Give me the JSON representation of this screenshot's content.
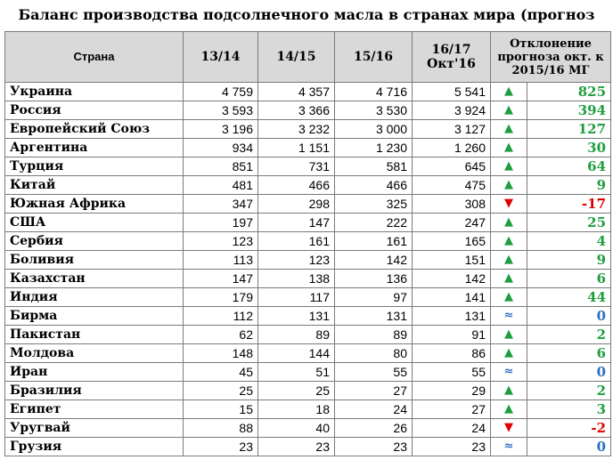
{
  "title": "Баланс производства подсолнечного масла в странах мира (прогноз октября)",
  "headers": {
    "country": "Страна",
    "y1314": "13/14",
    "y1415": "14/15",
    "y1516": "15/16",
    "y1617_line1": "16/17",
    "y1617_line2": "Окт'16",
    "deviation": "Отклонение прогноза окт. к 2015/16 МГ"
  },
  "rows": [
    {
      "country": "Украина",
      "v1": "4 759",
      "v2": "4 357",
      "v3": "4 716",
      "v4": "5 541",
      "trend": "up",
      "arrow": "▲",
      "dev": "825"
    },
    {
      "country": "Россия",
      "v1": "3 593",
      "v2": "3 366",
      "v3": "3 530",
      "v4": "3 924",
      "trend": "up",
      "arrow": "▲",
      "dev": "394"
    },
    {
      "country": "Европейский Союз",
      "v1": "3 196",
      "v2": "3 232",
      "v3": "3 000",
      "v4": "3 127",
      "trend": "up",
      "arrow": "▲",
      "dev": "127"
    },
    {
      "country": "Аргентина",
      "v1": "934",
      "v2": "1 151",
      "v3": "1 230",
      "v4": "1 260",
      "trend": "up",
      "arrow": "▲",
      "dev": "30"
    },
    {
      "country": "Турция",
      "v1": "851",
      "v2": "731",
      "v3": "581",
      "v4": "645",
      "trend": "up",
      "arrow": "▲",
      "dev": "64"
    },
    {
      "country": "Китай",
      "v1": "481",
      "v2": "466",
      "v3": "466",
      "v4": "475",
      "trend": "up",
      "arrow": "▲",
      "dev": "9"
    },
    {
      "country": "Южная Африка",
      "v1": "347",
      "v2": "298",
      "v3": "325",
      "v4": "308",
      "trend": "down",
      "arrow": "▼",
      "dev": "-17"
    },
    {
      "country": "США",
      "v1": "197",
      "v2": "147",
      "v3": "222",
      "v4": "247",
      "trend": "up",
      "arrow": "▲",
      "dev": "25"
    },
    {
      "country": "Сербия",
      "v1": "123",
      "v2": "161",
      "v3": "161",
      "v4": "165",
      "trend": "up",
      "arrow": "▲",
      "dev": "4"
    },
    {
      "country": "Боливия",
      "v1": "113",
      "v2": "123",
      "v3": "142",
      "v4": "151",
      "trend": "up",
      "arrow": "▲",
      "dev": "9"
    },
    {
      "country": "Казахстан",
      "v1": "147",
      "v2": "138",
      "v3": "136",
      "v4": "142",
      "trend": "up",
      "arrow": "▲",
      "dev": "6"
    },
    {
      "country": "Индия",
      "v1": "179",
      "v2": "117",
      "v3": "97",
      "v4": "141",
      "trend": "up",
      "arrow": "▲",
      "dev": "44"
    },
    {
      "country": "Бирма",
      "v1": "112",
      "v2": "131",
      "v3": "131",
      "v4": "131",
      "trend": "eq",
      "arrow": "≈",
      "dev": "0"
    },
    {
      "country": "Пакистан",
      "v1": "62",
      "v2": "89",
      "v3": "89",
      "v4": "91",
      "trend": "up",
      "arrow": "▲",
      "dev": "2"
    },
    {
      "country": "Молдова",
      "v1": "148",
      "v2": "144",
      "v3": "80",
      "v4": "86",
      "trend": "up",
      "arrow": "▲",
      "dev": "6"
    },
    {
      "country": "Иран",
      "v1": "45",
      "v2": "51",
      "v3": "55",
      "v4": "55",
      "trend": "eq",
      "arrow": "≈",
      "dev": "0"
    },
    {
      "country": "Бразилия",
      "v1": "25",
      "v2": "25",
      "v3": "27",
      "v4": "29",
      "trend": "up",
      "arrow": "▲",
      "dev": "2"
    },
    {
      "country": "Египет",
      "v1": "15",
      "v2": "18",
      "v3": "24",
      "v4": "27",
      "trend": "up",
      "arrow": "▲",
      "dev": "3"
    },
    {
      "country": "Уругвай",
      "v1": "88",
      "v2": "40",
      "v3": "26",
      "v4": "24",
      "trend": "down",
      "arrow": "▼",
      "dev": "-2"
    },
    {
      "country": "Грузия",
      "v1": "23",
      "v2": "23",
      "v3": "23",
      "v4": "23",
      "trend": "eq",
      "arrow": "≈",
      "dev": "0"
    }
  ],
  "colors": {
    "header_bg": "#d9d9d9",
    "up": "#1e9e3f",
    "down": "#e00000",
    "equal": "#2a6fc1",
    "border": "#7a7a7a"
  },
  "icons": {
    "up": "triangle-up-icon",
    "down": "triangle-down-icon",
    "eq": "approx-equal-icon"
  }
}
